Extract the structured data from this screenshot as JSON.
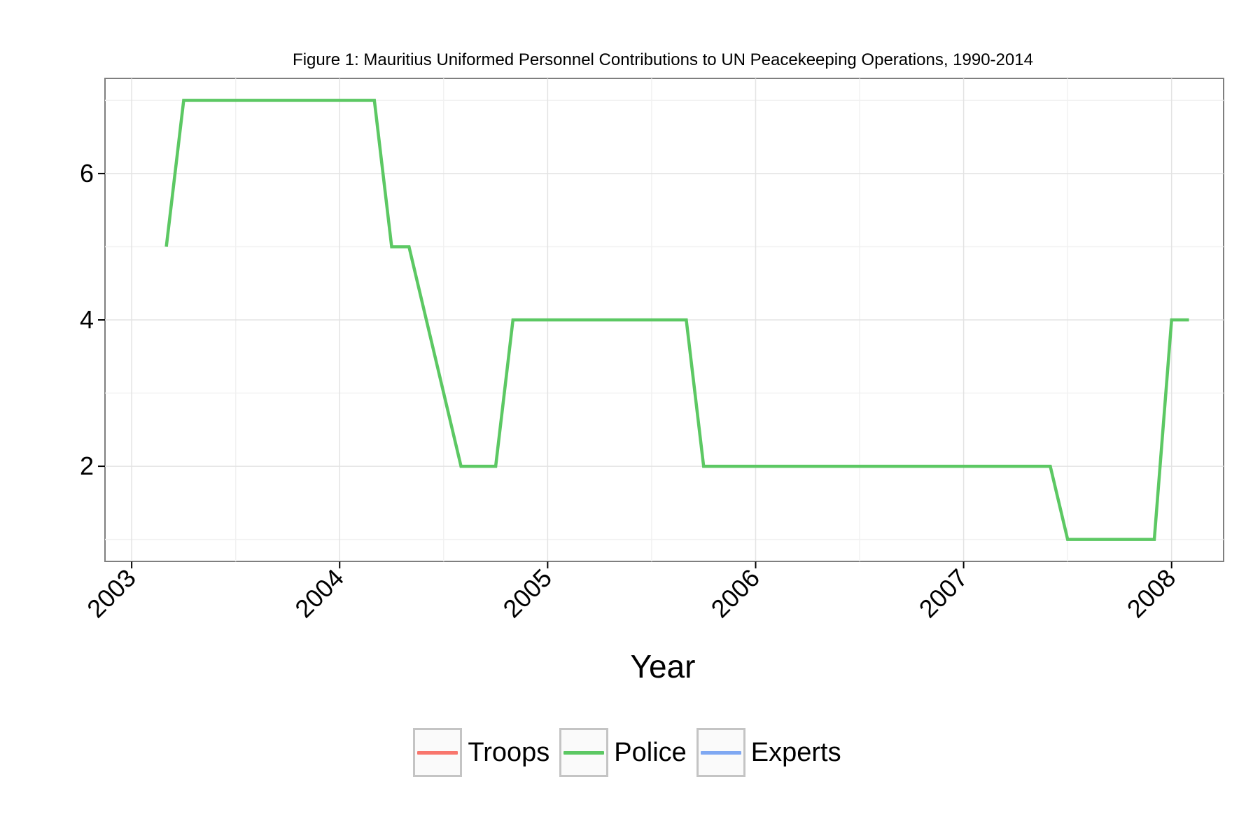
{
  "chart_data": {
    "type": "line",
    "title": "Figure 1: Mauritius Uniformed Personnel Contributions to UN Peacekeeping Operations, 1990-2014",
    "xlabel": "Year",
    "ylabel": "",
    "x_ticks": [
      "2003",
      "2004",
      "2005",
      "2006",
      "2007",
      "2008"
    ],
    "y_ticks": [
      2,
      4,
      6
    ],
    "xlim": [
      "2002-11-15",
      "2008-04-01"
    ],
    "ylim": [
      0.7,
      7.3
    ],
    "grid": true,
    "legend_position": "bottom",
    "series": [
      {
        "name": "Troops",
        "color": "#F8766D",
        "points": []
      },
      {
        "name": "Police",
        "color": "#5CC863",
        "points": [
          [
            "2003-03-01",
            5
          ],
          [
            "2003-04-01",
            7
          ],
          [
            "2004-03-01",
            7
          ],
          [
            "2004-04-01",
            5
          ],
          [
            "2004-05-01",
            5
          ],
          [
            "2004-08-01",
            2
          ],
          [
            "2004-10-01",
            2
          ],
          [
            "2004-11-01",
            4
          ],
          [
            "2005-09-01",
            4
          ],
          [
            "2005-10-01",
            2
          ],
          [
            "2007-06-01",
            2
          ],
          [
            "2007-07-01",
            1
          ],
          [
            "2007-12-01",
            1
          ],
          [
            "2008-01-01",
            4
          ],
          [
            "2008-02-01",
            4
          ]
        ]
      },
      {
        "name": "Experts",
        "color": "#7FA8F2",
        "points": []
      }
    ]
  }
}
